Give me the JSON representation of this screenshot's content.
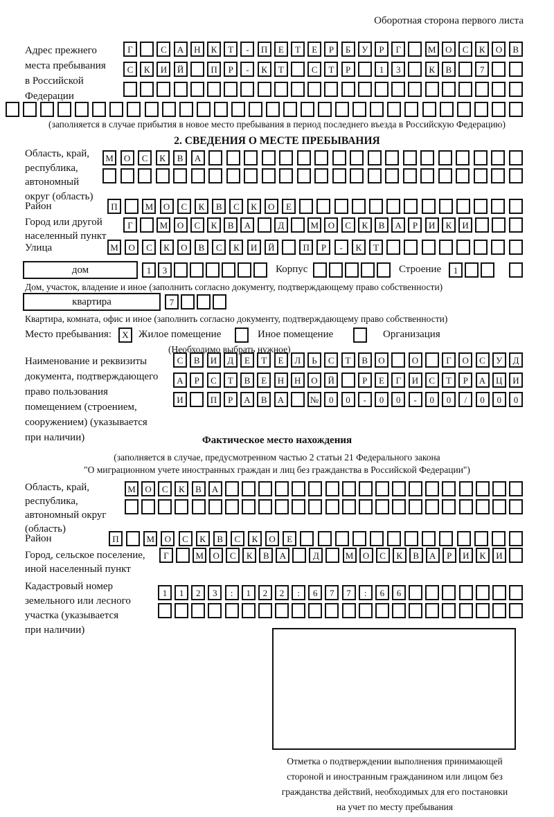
{
  "page_header": {
    "corner_note": "Оборотная сторона первого листа"
  },
  "prev_address": {
    "label_lines": [
      "Адрес прежнего",
      "места пребывания",
      "в Российской",
      "Федерации"
    ],
    "rows": [
      "Г САНКТ-ПЕТЕРБУРГ МОСКОВ",
      "СКИЙ ПР-КТ СТР 13 КВ 7  ",
      "                        ",
      "                              "
    ],
    "note": "(заполняется в случае прибытия в новое место пребывания в период последнего въезда в Российскую Федерацию)"
  },
  "section2": {
    "title": "2. СВЕДЕНИЯ О МЕСТЕ ПРЕБЫВАНИЯ",
    "oblast": {
      "label_lines": [
        "Область, край,",
        "республика,",
        "автономный",
        "округ (область)"
      ],
      "rows": [
        "МОСКВА                  ",
        "                        "
      ]
    },
    "rayon": {
      "label": "Район",
      "cells": "П МОСКВСКОЕ             "
    },
    "gorod": {
      "label_lines": [
        "Город или другой",
        "населенный пункт"
      ],
      "cells": "Г МОСКВА Д МОСКВАРИКИ   "
    },
    "ulitsa": {
      "label": "Улица",
      "cells": "МОСКОВСКИЙ ПР-КТ        "
    },
    "dom": {
      "box_label": "дом",
      "cells": "13      "
    },
    "korpus": {
      "label": "Корпус",
      "cells": "     "
    },
    "stroenie": {
      "label": "Строение",
      "cells": "1  ",
      "extra_cell": " "
    },
    "dom_note": "Дом, участок, владение и иное (заполнить согласно документу, подтверждающему право собственности)",
    "kvartira": {
      "box_label": "квартира",
      "cells": "7   "
    },
    "kvartira_note": "Квартира, комната, офис и иное (заполнить согласно документу, подтверждающему право собственности)",
    "mesto": {
      "label": "Место пребывания:",
      "options": [
        {
          "label": "Жилое помещение",
          "value": "X"
        },
        {
          "label": "Иное помещение",
          "value": ""
        },
        {
          "label": "Организация",
          "value": ""
        }
      ],
      "note": "(Необходимо выбрать нужное)"
    },
    "doc": {
      "label_lines": [
        "Наименование и реквизиты",
        "документа, подтверждающего",
        "право пользования",
        "помещением (строением,",
        "сооружением) (указывается",
        "при наличии)"
      ],
      "rows": [
        "СВИДЕТЕЛЬСТВО О ГОСУД",
        "АРСТВЕННОЙ РЕГИСТРАЦИ",
        "И ПРАВА №00-00-00/000"
      ]
    }
  },
  "fact": {
    "title": "Фактическое место нахождения",
    "note_lines": [
      "(заполняется в случае, предусмотренном частью 2 статьи 21 Федерального закона",
      "\"О миграционном учете иностранных граждан и лиц без гражданства в Российской Федерации\")"
    ],
    "oblast": {
      "label_lines": [
        "Область, край,",
        "республика,",
        "автономный округ",
        "(область)"
      ],
      "rows": [
        "МОСКВА                  ",
        "                        "
      ]
    },
    "rayon": {
      "label": "Район",
      "cells": "П МОСКВСКОЕ             "
    },
    "gorod": {
      "label_lines": [
        "Город, сельское поселение,",
        "иной населенный пункт"
      ],
      "cells": "Г МОСКВА Д МОСКВАРИКИ "
    },
    "kadastr": {
      "label_lines": [
        "Кадастровый номер",
        "земельного или лесного",
        "участка (указывается",
        "при наличии)"
      ],
      "rows": [
        "1123:122:677:66       ",
        "                      "
      ]
    },
    "stamp_note_lines": [
      "Отметка о подтверждении выполнения принимающей",
      "стороной и иностранным гражданином или лицом без",
      "гражданства действий, необходимых для его постановки",
      "на учет по месту пребывания"
    ]
  }
}
